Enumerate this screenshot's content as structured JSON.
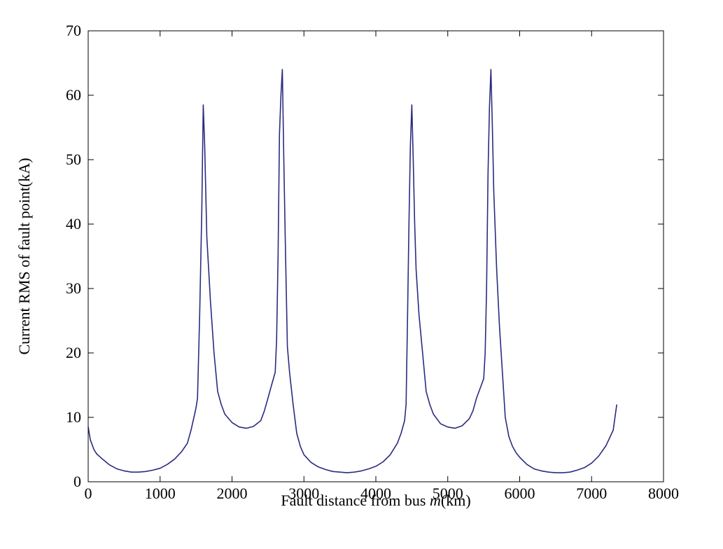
{
  "chart_data": {
    "type": "line",
    "title": "",
    "xlabel": {
      "prefix": "Fault distance from bus ",
      "variable": "m",
      "suffix": "(km)"
    },
    "ylabel": "Current RMS of fault point(kA)",
    "xlim": [
      0,
      8000
    ],
    "ylim": [
      0,
      70
    ],
    "xticks": [
      0,
      1000,
      2000,
      3000,
      4000,
      5000,
      6000,
      7000,
      8000
    ],
    "yticks": [
      0,
      10,
      20,
      30,
      40,
      50,
      60,
      70
    ],
    "grid": false,
    "legend": "none",
    "line_color": "#2b2b80",
    "series": [
      {
        "x": [
          0,
          30,
          80,
          120,
          200,
          300,
          400,
          500,
          600,
          700,
          800,
          900,
          1000,
          1100,
          1200,
          1300,
          1380,
          1430,
          1480,
          1500,
          1520,
          1550,
          1580,
          1600,
          1620,
          1650,
          1700,
          1750,
          1800,
          1850,
          1900,
          2000,
          2100,
          2200,
          2300,
          2400,
          2450,
          2500,
          2550,
          2600,
          2620,
          2640,
          2660,
          2680,
          2700,
          2720,
          2740,
          2770,
          2800,
          2850,
          2900,
          2950,
          3000,
          3100,
          3200,
          3300,
          3400,
          3500,
          3600,
          3700,
          3800,
          3900,
          4000,
          4100,
          4200,
          4300,
          4350,
          4400,
          4420,
          4440,
          4460,
          4480,
          4500,
          4520,
          4540,
          4560,
          4600,
          4650,
          4700,
          4750,
          4800,
          4900,
          5000,
          5100,
          5200,
          5300,
          5350,
          5400,
          5450,
          5500,
          5520,
          5540,
          5560,
          5580,
          5600,
          5620,
          5640,
          5680,
          5720,
          5760,
          5800,
          5850,
          5900,
          5950,
          6000,
          6100,
          6200,
          6300,
          6400,
          6500,
          6600,
          6700,
          6800,
          6900,
          7000,
          7100,
          7200,
          7300,
          7350
        ],
        "y": [
          8.5,
          6.5,
          5.0,
          4.3,
          3.5,
          2.6,
          2.0,
          1.7,
          1.5,
          1.5,
          1.6,
          1.8,
          2.1,
          2.7,
          3.5,
          4.7,
          6.0,
          8.0,
          10.5,
          11.5,
          13.0,
          26.0,
          42.0,
          58.5,
          52.0,
          38.0,
          28.0,
          20.0,
          14.0,
          12.0,
          10.5,
          9.2,
          8.5,
          8.3,
          8.6,
          9.5,
          11.0,
          13.0,
          15.0,
          17.0,
          22.0,
          35.0,
          54.0,
          60.0,
          64.0,
          50.0,
          38.0,
          21.0,
          17.0,
          12.0,
          7.5,
          5.5,
          4.2,
          3.0,
          2.3,
          1.9,
          1.6,
          1.5,
          1.4,
          1.5,
          1.7,
          2.0,
          2.4,
          3.1,
          4.2,
          6.0,
          7.5,
          9.5,
          12.0,
          25.0,
          40.0,
          52.0,
          58.5,
          50.0,
          40.0,
          33.0,
          26.0,
          20.0,
          14.0,
          12.0,
          10.5,
          9.0,
          8.5,
          8.3,
          8.7,
          9.8,
          11.0,
          13.0,
          14.5,
          16.0,
          20.0,
          30.0,
          48.0,
          58.0,
          64.0,
          55.0,
          45.0,
          33.0,
          24.0,
          17.0,
          10.0,
          7.0,
          5.5,
          4.5,
          3.8,
          2.7,
          2.0,
          1.7,
          1.5,
          1.4,
          1.4,
          1.5,
          1.8,
          2.2,
          2.9,
          4.0,
          5.6,
          8.0,
          12.0
        ]
      }
    ]
  }
}
